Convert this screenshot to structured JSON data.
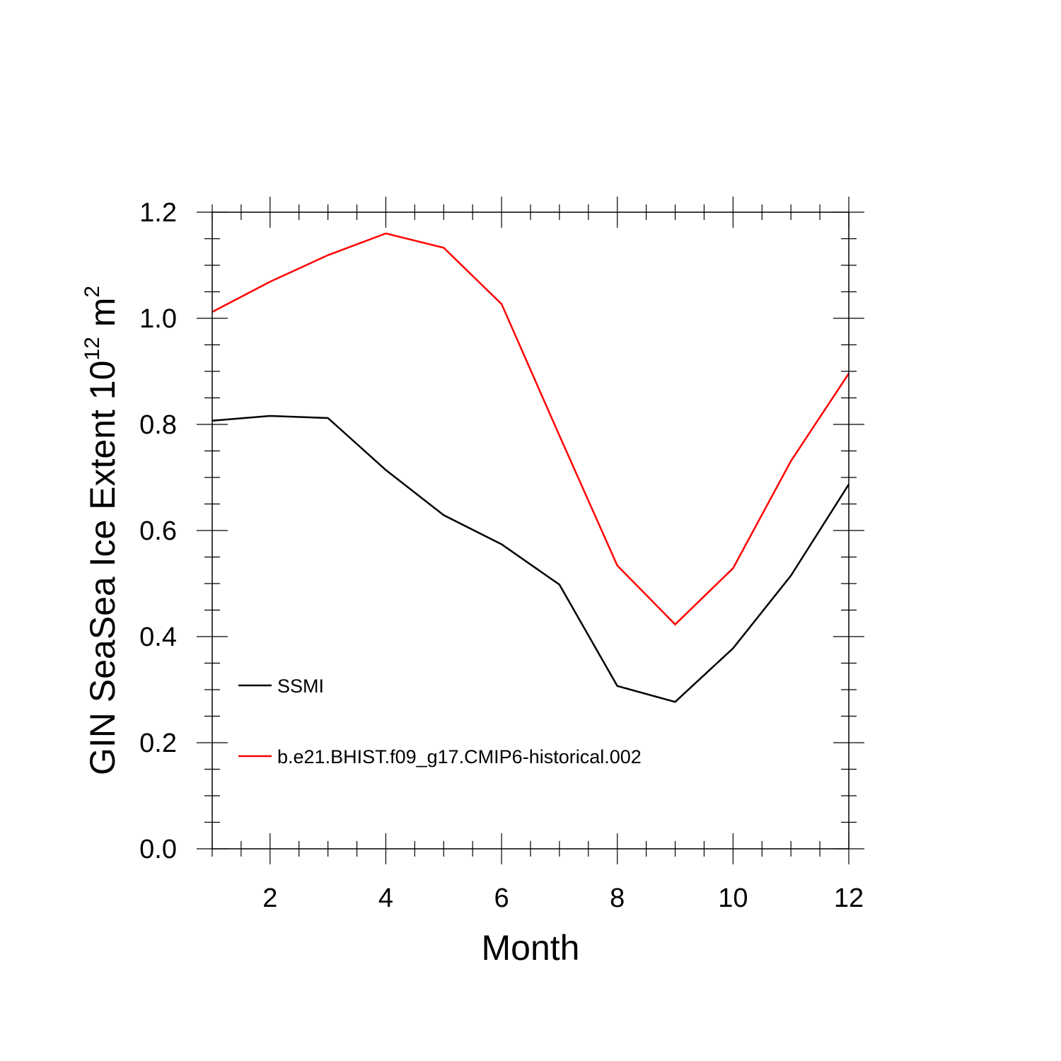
{
  "chart_data": {
    "type": "line",
    "xlabel": "Month",
    "ylabel": {
      "prefix": "GIN SeaSea Ice Extent 10",
      "exp": "12",
      "unit": " m",
      "unit_exp": "2"
    },
    "xlim": [
      1,
      12
    ],
    "ylim": [
      0.0,
      1.2
    ],
    "x_ticks": [
      "2",
      "4",
      "6",
      "8",
      "10",
      "12"
    ],
    "y_ticks": [
      "0.0",
      "0.2",
      "0.4",
      "0.6",
      "0.8",
      "1.0",
      "1.2"
    ],
    "x": [
      1,
      2,
      3,
      4,
      5,
      6,
      7,
      8,
      9,
      10,
      11,
      12
    ],
    "grid": false,
    "legend_position": "bottom-left inside",
    "series": [
      {
        "name": "SSMI",
        "color": "#000000",
        "values": [
          0.807,
          0.816,
          0.812,
          0.714,
          0.629,
          0.574,
          0.498,
          0.307,
          0.277,
          0.378,
          0.515,
          0.687
        ]
      },
      {
        "name": "b.e21.BHIST.f09_g17.CMIP6-historical.002",
        "color": "#ff0000",
        "values": [
          1.012,
          1.069,
          1.119,
          1.16,
          1.133,
          1.027,
          0.779,
          0.534,
          0.423,
          0.529,
          0.731,
          0.896
        ]
      }
    ]
  }
}
